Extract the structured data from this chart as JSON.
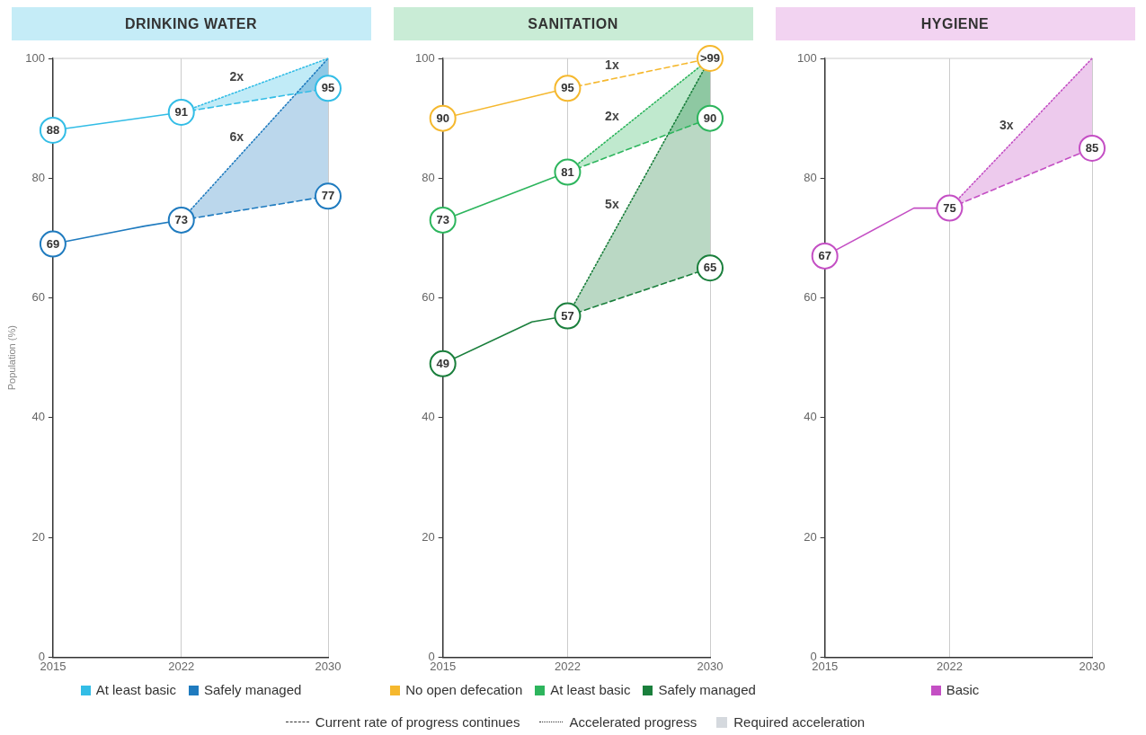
{
  "chart_data": [
    {
      "type": "line",
      "title": "DRINKING WATER",
      "ylabel": "Population (%)",
      "xlim": [
        2015,
        2030
      ],
      "xticks": [
        2015,
        2022,
        2030
      ],
      "ylim": [
        0,
        100
      ],
      "yticks": [
        0,
        20,
        40,
        60,
        80,
        100
      ],
      "grid": "x",
      "legend": "bottom",
      "marker": "circle",
      "series": [
        {
          "name": "At least basic",
          "color": "#33bde6",
          "x": [
            2015,
            2022
          ],
          "values": [
            88,
            91
          ],
          "value_labels": [
            "88",
            "91"
          ],
          "line_style": "solid"
        },
        {
          "name": "Safely managed",
          "color": "#1f7bbf",
          "x": [
            2015,
            2020,
            2022
          ],
          "values": [
            69,
            72,
            73
          ],
          "value_labels": [
            "69",
            null,
            "73"
          ],
          "line_style": "solid"
        },
        {
          "color": "#33bde6",
          "x": [
            2022,
            2030
          ],
          "values": [
            91,
            95
          ],
          "value_labels": [
            null,
            "95"
          ],
          "line_style": "dashed"
        },
        {
          "color": "#33bde6",
          "x": [
            2022,
            2030
          ],
          "values": [
            91,
            100
          ],
          "lower": [
            91,
            95
          ],
          "upper": [
            91,
            100
          ],
          "line_style": "dotted",
          "marker": "none"
        },
        {
          "color": "#1f7bbf",
          "x": [
            2022,
            2030
          ],
          "values": [
            73,
            77
          ],
          "value_labels": [
            null,
            "77"
          ],
          "line_style": "dashed"
        },
        {
          "color": "#1f7bbf",
          "x": [
            2022,
            2030
          ],
          "values": [
            73,
            100
          ],
          "lower": [
            73,
            77
          ],
          "upper": [
            73,
            100
          ],
          "line_style": "dotted",
          "marker": "none"
        }
      ],
      "annotations": [
        {
          "text": "2x",
          "x": 2025.6,
          "y": 95
        },
        {
          "text": "6x",
          "x": 2025.6,
          "y": 85
        }
      ]
    },
    {
      "type": "line",
      "title": "SANITATION",
      "xlim": [
        2015,
        2030
      ],
      "xticks": [
        2015,
        2022,
        2030
      ],
      "ylim": [
        0,
        100
      ],
      "yticks": [
        0,
        20,
        40,
        60,
        80,
        100
      ],
      "grid": "x",
      "legend": "bottom",
      "marker": "circle",
      "series": [
        {
          "name": "No open defecation",
          "color": "#f5b82e",
          "x": [
            2015,
            2022
          ],
          "values": [
            90,
            95
          ],
          "value_labels": [
            "90",
            "95"
          ],
          "line_style": "solid"
        },
        {
          "name": "At least basic",
          "color": "#2db55d",
          "x": [
            2015,
            2022
          ],
          "values": [
            73,
            81
          ],
          "value_labels": [
            "73",
            "81"
          ],
          "line_style": "solid"
        },
        {
          "name": "Safely managed",
          "color": "#1a7f3c",
          "x": [
            2015,
            2020,
            2022
          ],
          "values": [
            49,
            56,
            57
          ],
          "value_labels": [
            "49",
            null,
            "57"
          ],
          "line_style": "solid"
        },
        {
          "color": "#f5b82e",
          "x": [
            2022,
            2030
          ],
          "values": [
            95,
            100
          ],
          "value_labels": [
            null,
            ">99"
          ],
          "line_style": "dashed"
        },
        {
          "color": "#2db55d",
          "x": [
            2022,
            2030
          ],
          "values": [
            81,
            90
          ],
          "value_labels": [
            null,
            "90"
          ],
          "line_style": "dashed"
        },
        {
          "color": "#2db55d",
          "x": [
            2022,
            2030
          ],
          "values": [
            81,
            100
          ],
          "lower": [
            81,
            90
          ],
          "upper": [
            81,
            100
          ],
          "line_style": "dotted",
          "marker": "none"
        },
        {
          "color": "#1a7f3c",
          "x": [
            2022,
            2030
          ],
          "values": [
            57,
            65
          ],
          "value_labels": [
            null,
            "65"
          ],
          "line_style": "dashed"
        },
        {
          "color": "#1a7f3c",
          "x": [
            2022,
            2030
          ],
          "values": [
            57,
            100
          ],
          "lower": [
            57,
            65
          ],
          "upper": [
            57,
            100
          ],
          "line_style": "dotted",
          "marker": "none"
        }
      ],
      "annotations": [
        {
          "text": "1x",
          "x": 2025.1,
          "y": 97
        },
        {
          "text": "2x",
          "x": 2025.1,
          "y": 88.4
        },
        {
          "text": "5x",
          "x": 2025.1,
          "y": 73.7
        },
        "Current rate of progress continues",
        "Accelerated progress",
        "Required acceleration"
      ]
    },
    {
      "type": "line",
      "title": "HYGIENE",
      "xlim": [
        2015,
        2030
      ],
      "xticks": [
        2015,
        2022,
        2030
      ],
      "ylim": [
        0,
        100
      ],
      "yticks": [
        0,
        20,
        40,
        60,
        80,
        100
      ],
      "grid": "x",
      "legend": "bottom",
      "marker": "circle",
      "series": [
        {
          "name": "Basic",
          "color": "#c44fc4",
          "x": [
            2015,
            2020,
            2022
          ],
          "values": [
            67,
            75,
            75
          ],
          "value_labels": [
            "67",
            null,
            "75"
          ],
          "line_style": "solid"
        },
        {
          "color": "#c44fc4",
          "x": [
            2022,
            2030
          ],
          "values": [
            75,
            85
          ],
          "value_labels": [
            null,
            "85"
          ],
          "line_style": "dashed"
        },
        {
          "color": "#c44fc4",
          "x": [
            2022,
            2030
          ],
          "values": [
            75,
            100
          ],
          "lower": [
            75,
            85
          ],
          "upper": [
            75,
            100
          ],
          "line_style": "dotted",
          "marker": "none"
        }
      ],
      "annotations": [
        {
          "text": "3x",
          "x": 2025.8,
          "y": 86.9
        }
      ]
    }
  ]
}
